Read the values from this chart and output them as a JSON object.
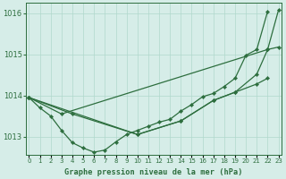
{
  "title": "Graphe pression niveau de la mer (hPa)",
  "x_ticks": [
    "0",
    "1",
    "2",
    "3",
    "4",
    "5",
    "6",
    "7",
    "8",
    "9",
    "10",
    "11",
    "12",
    "13",
    "14",
    "15",
    "16",
    "17",
    "18",
    "19",
    "20",
    "21",
    "22",
    "23"
  ],
  "ylim": [
    1012.55,
    1016.25
  ],
  "yticks": [
    1013,
    1014,
    1015,
    1016
  ],
  "xlim": [
    -0.3,
    23.3
  ],
  "bg_color": "#d6ede8",
  "line_color": "#2d6e3e",
  "grid_color": "#b0d8cc",
  "title_color": "#2d6e3e",
  "tick_color": "#2d6e3e",
  "line1_x": [
    0,
    1,
    2,
    3,
    4,
    5,
    6,
    7,
    8,
    9,
    10,
    11,
    12,
    13,
    14,
    15,
    16,
    17,
    18,
    19,
    20,
    21,
    22
  ],
  "line1_y": [
    1013.95,
    1013.7,
    1013.5,
    1013.15,
    1012.85,
    1012.72,
    1012.62,
    1012.67,
    1012.87,
    1013.05,
    1013.15,
    1013.25,
    1013.35,
    1013.42,
    1013.62,
    1013.78,
    1013.97,
    1014.05,
    1014.22,
    1014.42,
    1014.98,
    1015.12,
    1016.05
  ],
  "line2_x": [
    0,
    3,
    22,
    23
  ],
  "line2_y": [
    1013.95,
    1013.55,
    1015.12,
    1016.08
  ],
  "line3_x": [
    0,
    4,
    10,
    14,
    17,
    19,
    21,
    22
  ],
  "line3_y": [
    1013.95,
    1013.55,
    1013.05,
    1013.38,
    1013.88,
    1014.08,
    1014.28,
    1014.42
  ],
  "line4_x": [
    0,
    10,
    14,
    17,
    19,
    21,
    22,
    23
  ],
  "line4_y": [
    1013.95,
    1013.05,
    1013.38,
    1013.88,
    1014.08,
    1014.52,
    1015.12,
    1015.18
  ]
}
